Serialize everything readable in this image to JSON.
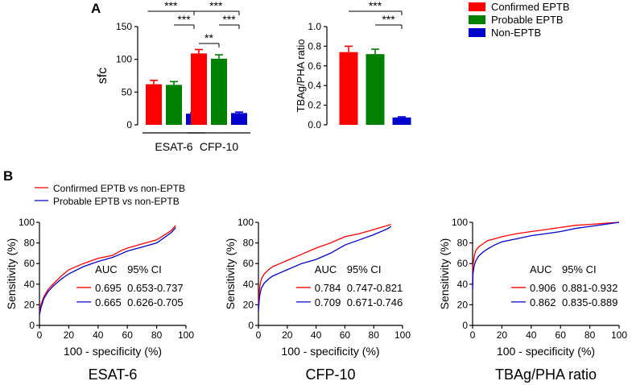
{
  "panel_labels": {
    "a": "A",
    "b": "B"
  },
  "colors": {
    "confirmed": "#ff0000",
    "probable": "#008000",
    "non": "#0000cc"
  },
  "legend_a": [
    "Confirmed EPTB",
    "Probable EPTB",
    "Non-EPTB"
  ],
  "legend_b": [
    "Confirmed EPTB vs non-EPTB",
    "Probable EPTB vs non-EPTB"
  ],
  "sig": {
    "three": "***",
    "two": "**"
  },
  "chart_data": [
    {
      "type": "bar",
      "ylabel": "sfc",
      "ylim": [
        0,
        150
      ],
      "yticks": [
        "0",
        "50",
        "100",
        "150"
      ],
      "groups": [
        "ESAT-6",
        "CFP-10"
      ],
      "series": [
        {
          "name": "Confirmed EPTB",
          "values": [
            62,
            109
          ],
          "errors": [
            6,
            6
          ]
        },
        {
          "name": "Probable EPTB",
          "values": [
            61,
            101
          ],
          "errors": [
            5,
            6
          ]
        },
        {
          "name": "Non-EPTB",
          "values": [
            17,
            18
          ],
          "errors": [
            1.5,
            1.5
          ]
        }
      ]
    },
    {
      "type": "bar",
      "ylabel": "TBAg/PHA ratio",
      "ylim": [
        0,
        1.0
      ],
      "yticks": [
        "0.0",
        "0.2",
        "0.4",
        "0.6",
        "0.8",
        "1.0"
      ],
      "groups": [
        ""
      ],
      "series": [
        {
          "name": "Confirmed EPTB",
          "values": [
            0.74
          ],
          "errors": [
            0.06
          ]
        },
        {
          "name": "Probable EPTB",
          "values": [
            0.72
          ],
          "errors": [
            0.05
          ]
        },
        {
          "name": "Non-EPTB",
          "values": [
            0.075
          ],
          "errors": [
            0.007
          ]
        }
      ]
    },
    {
      "type": "line",
      "title": "ESAT-6",
      "xlabel": "100 - specificity (%)",
      "ylabel": "Sensitivity (%)",
      "xlim": [
        0,
        100
      ],
      "ylim": [
        0,
        100
      ],
      "ticks": [
        "0",
        "20",
        "40",
        "60",
        "80",
        "100"
      ],
      "table_header": [
        "AUC",
        "95% CI"
      ],
      "rows": [
        [
          "0.695",
          "0.653-0.737"
        ],
        [
          "0.665",
          "0.626-0.705"
        ]
      ],
      "series": [
        {
          "name": "Confirmed EPTB vs non-EPTB",
          "x": [
            0,
            1,
            3,
            6,
            10,
            15,
            20,
            30,
            40,
            50,
            55,
            60,
            70,
            80,
            90,
            93
          ],
          "y": [
            12,
            20,
            28,
            35,
            41,
            48,
            54,
            60,
            65,
            68,
            72,
            75,
            79,
            83,
            92,
            97
          ]
        },
        {
          "name": "Probable EPTB vs non-EPTB",
          "x": [
            0,
            1,
            3,
            6,
            10,
            15,
            20,
            30,
            40,
            50,
            55,
            60,
            70,
            80,
            90,
            93
          ],
          "y": [
            10,
            17,
            26,
            33,
            39,
            45,
            50,
            57,
            62,
            66,
            69,
            72,
            76,
            80,
            90,
            95
          ]
        }
      ]
    },
    {
      "type": "line",
      "title": "CFP-10",
      "xlabel": "100 - specificity (%)",
      "ylabel": "Sensitivity (%)",
      "xlim": [
        0,
        100
      ],
      "ylim": [
        0,
        100
      ],
      "ticks": [
        "0",
        "20",
        "40",
        "60",
        "80",
        "100"
      ],
      "table_header": [
        "AUC",
        "95% CI"
      ],
      "rows": [
        [
          "0.784",
          "0.747-0.821"
        ],
        [
          "0.709",
          "0.671-0.746"
        ]
      ],
      "series": [
        {
          "name": "Confirmed EPTB vs non-EPTB",
          "x": [
            0,
            0.5,
            1,
            2,
            4,
            7,
            10,
            15,
            20,
            30,
            40,
            50,
            60,
            70,
            80,
            90,
            92
          ],
          "y": [
            18,
            32,
            38,
            45,
            50,
            54,
            57,
            60,
            63,
            69,
            75,
            80,
            86,
            89,
            93,
            97,
            98
          ]
        },
        {
          "name": "Probable EPTB vs non-EPTB",
          "x": [
            0,
            0.5,
            1,
            2,
            4,
            7,
            10,
            15,
            20,
            30,
            40,
            50,
            60,
            70,
            80,
            90,
            92
          ],
          "y": [
            14,
            24,
            30,
            36,
            41,
            45,
            48,
            51,
            54,
            60,
            64,
            70,
            78,
            83,
            88,
            94,
            96
          ]
        }
      ]
    },
    {
      "type": "line",
      "title": "TBAg/PHA ratio",
      "xlabel": "100 - specificity (%)",
      "ylabel": "Sensitivity (%)",
      "xlim": [
        0,
        100
      ],
      "ylim": [
        0,
        100
      ],
      "ticks": [
        "0",
        "20",
        "40",
        "60",
        "80",
        "100"
      ],
      "table_header": [
        "AUC",
        "95% CI"
      ],
      "rows": [
        [
          "0.906",
          "0.881-0.932"
        ],
        [
          "0.862",
          "0.835-0.889"
        ]
      ],
      "series": [
        {
          "name": "Confirmed EPTB vs non-EPTB",
          "x": [
            0,
            0.3,
            1,
            2,
            4,
            7,
            10,
            15,
            20,
            30,
            40,
            50,
            60,
            70,
            80,
            90,
            100
          ],
          "y": [
            40,
            58,
            66,
            72,
            76,
            79,
            82,
            84,
            86,
            89,
            91,
            93,
            95,
            97,
            98,
            99,
            100
          ]
        },
        {
          "name": "Probable EPTB vs non-EPTB",
          "x": [
            0,
            0.3,
            1,
            2,
            4,
            7,
            10,
            15,
            20,
            30,
            40,
            50,
            60,
            70,
            80,
            90,
            100
          ],
          "y": [
            35,
            50,
            57,
            62,
            67,
            71,
            74,
            78,
            81,
            84,
            87,
            89,
            91,
            94,
            96,
            98,
            100
          ]
        }
      ]
    }
  ]
}
